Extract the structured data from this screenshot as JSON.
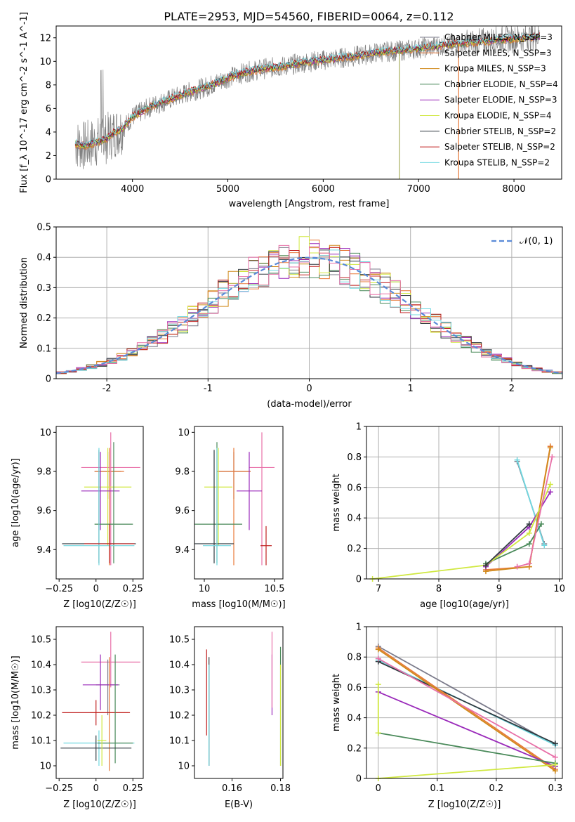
{
  "figure_title": "PLATE=2953, MJD=54560, FIBERID=0064, z=0.112",
  "colors": {
    "Chabrier MILES": "#7a7a8a",
    "Salpeter MILES": "#e87a3a",
    "Kroupa MILES": "#d08a1a",
    "Chabrier ELODIE": "#4a8a5a",
    "Salpeter ELODIE": "#9a2aba",
    "Kroupa ELODIE": "#d0e840",
    "Chabrier STELIB": "#303a40",
    "Salpeter STELIB": "#c02020",
    "Kroupa STELIB": "#70d8e0",
    "pink": "#e870a8",
    "gauss": "#5a8ad8",
    "data": "#808080"
  },
  "chart_data": [
    {
      "id": "spectrum",
      "type": "line",
      "xlabel": "wavelength [Angstrom, rest frame]",
      "ylabel": "Flux [f_λ 10^-17 erg cm^-2 s^-1 A^-1]",
      "xlim": [
        3200,
        8500
      ],
      "ylim": [
        0,
        13
      ],
      "xticks": [
        4000,
        5000,
        6000,
        7000,
        8000
      ],
      "yticks": [
        0,
        2,
        4,
        6,
        8,
        10,
        12
      ],
      "legend_position": "right",
      "legend": [
        "Chabrier MILES, N_SSP=3",
        "Salpeter MILES, N_SSP=3",
        "Kroupa MILES, N_SSP=3",
        "Chabrier ELODIE, N_SSP=4",
        "Salpeter ELODIE, N_SSP=3",
        "Kroupa ELODIE, N_SSP=4",
        "Chabrier STELIB, N_SSP=2",
        "Salpeter STELIB, N_SSP=2",
        "Kroupa STELIB, N_SSP=2"
      ],
      "model_continuum": {
        "x": [
          3400,
          3500,
          3600,
          3700,
          3800,
          3900,
          4000,
          4200,
          4400,
          4600,
          4800,
          5000,
          5200,
          5400,
          5600,
          5800,
          6000,
          6200,
          6400,
          6600,
          6800,
          7000,
          7200,
          7400,
          7600,
          7800,
          8000,
          8250
        ],
        "y": [
          3.0,
          2.8,
          3.1,
          3.3,
          3.9,
          4.3,
          5.3,
          6.2,
          6.8,
          7.4,
          7.9,
          8.6,
          9.1,
          9.4,
          9.6,
          9.9,
          10.1,
          10.3,
          10.5,
          10.8,
          10.9,
          11.1,
          11.3,
          11.5,
          11.6,
          11.8,
          11.9,
          12.1
        ]
      }
    },
    {
      "id": "residuals",
      "type": "histogram",
      "xlabel": "(data-model)/error",
      "ylabel": "Normed distribution",
      "xlim": [
        -2.5,
        2.5
      ],
      "ylim": [
        0,
        0.5
      ],
      "xticks": [
        -2,
        -1,
        0,
        1,
        2
      ],
      "yticks": [
        0.0,
        0.1,
        0.2,
        0.3,
        0.4,
        0.5
      ],
      "grid": true,
      "legend": [
        "𝒩(0, 1)"
      ],
      "legend_position": "top-right",
      "bins": [
        -2.5,
        -2.4,
        -2.3,
        -2.2,
        -2.1,
        -2.0,
        -1.9,
        -1.8,
        -1.7,
        -1.6,
        -1.5,
        -1.4,
        -1.3,
        -1.2,
        -1.1,
        -1.0,
        -0.9,
        -0.8,
        -0.7,
        -0.6,
        -0.5,
        -0.4,
        -0.3,
        -0.2,
        -0.1,
        0.0,
        0.1,
        0.2,
        0.3,
        0.4,
        0.5,
        0.6,
        0.7,
        0.8,
        0.9,
        1.0,
        1.1,
        1.2,
        1.3,
        1.4,
        1.5,
        1.6,
        1.7,
        1.8,
        1.9,
        2.0,
        2.1,
        2.2,
        2.3,
        2.4,
        2.5
      ]
    },
    {
      "id": "age_vs_Z",
      "type": "errorbar",
      "xlabel": "Z [log10(Z/Z☉)]",
      "ylabel": "age  [log10(age/yr)]",
      "xlim": [
        -0.27,
        0.32
      ],
      "ylim": [
        9.25,
        10.03
      ],
      "xticks": [
        -0.25,
        0.0,
        0.25
      ],
      "yticks": [
        9.4,
        9.6,
        9.8,
        10.0
      ],
      "points": [
        {
          "c": "Chabrier MILES",
          "x": 0.08,
          "y": 9.8,
          "xerr": 0.09,
          "yerr": [
            0.14,
            0.1
          ]
        },
        {
          "c": "Salpeter MILES",
          "x": 0.09,
          "y": 9.8,
          "xerr": 0.1,
          "yerr": [
            0.48,
            0.12
          ]
        },
        {
          "c": "pink",
          "x": 0.1,
          "y": 9.82,
          "xerr": 0.2,
          "yerr": [
            0.5,
            0.18
          ]
        },
        {
          "c": "Kroupa ELODIE",
          "x": 0.08,
          "y": 9.72,
          "xerr": 0.16,
          "yerr": [
            0.3,
            0.2
          ]
        },
        {
          "c": "Salpeter ELODIE",
          "x": 0.03,
          "y": 9.7,
          "xerr": 0.13,
          "yerr": [
            0.2,
            0.2
          ]
        },
        {
          "c": "Chabrier ELODIE",
          "x": 0.12,
          "y": 9.53,
          "xerr": 0.13,
          "yerr": [
            0.2,
            0.42
          ]
        },
        {
          "c": "Chabrier STELIB",
          "x": 0.02,
          "y": 9.43,
          "xerr": 0.25,
          "yerr": [
            0.1,
            0.48
          ]
        },
        {
          "c": "Kroupa STELIB",
          "x": 0.02,
          "y": 9.42,
          "xerr": 0.24,
          "yerr": [
            0.1,
            0.5
          ]
        },
        {
          "c": "Salpeter STELIB",
          "x": 0.09,
          "y": 9.43,
          "xerr": 0.17,
          "yerr": [
            0.1,
            0.1
          ]
        }
      ]
    },
    {
      "id": "age_vs_mass",
      "type": "errorbar",
      "xlabel": "mass [log10(M/M☉)]",
      "ylabel": "",
      "xlim": [
        9.93,
        10.56
      ],
      "ylim": [
        9.25,
        10.03
      ],
      "xticks": [
        10.0,
        10.5
      ],
      "yticks": [
        9.4,
        9.6,
        9.8,
        10.0
      ],
      "points": [
        {
          "c": "Chabrier MILES",
          "x": 10.21,
          "y": 9.8,
          "xerr": 0.12,
          "yerr": [
            0.14,
            0.1
          ]
        },
        {
          "c": "Salpeter MILES",
          "x": 10.21,
          "y": 9.8,
          "xerr": 0.12,
          "yerr": [
            0.48,
            0.12
          ]
        },
        {
          "c": "pink",
          "x": 10.41,
          "y": 9.82,
          "xerr": 0.09,
          "yerr": [
            0.5,
            0.18
          ]
        },
        {
          "c": "Kroupa ELODIE",
          "x": 10.1,
          "y": 9.72,
          "xerr": 0.1,
          "yerr": [
            0.3,
            0.2
          ]
        },
        {
          "c": "Salpeter ELODIE",
          "x": 10.32,
          "y": 9.7,
          "xerr": 0.09,
          "yerr": [
            0.2,
            0.2
          ]
        },
        {
          "c": "Chabrier ELODIE",
          "x": 10.09,
          "y": 9.53,
          "xerr": 0.18,
          "yerr": [
            0.2,
            0.42
          ]
        },
        {
          "c": "Chabrier STELIB",
          "x": 10.07,
          "y": 9.43,
          "xerr": 0.14,
          "yerr": [
            0.1,
            0.48
          ]
        },
        {
          "c": "Kroupa STELIB",
          "x": 10.09,
          "y": 9.42,
          "xerr": 0.1,
          "yerr": [
            0.1,
            0.5
          ]
        },
        {
          "c": "Salpeter STELIB",
          "x": 10.44,
          "y": 9.42,
          "xerr": 0.04,
          "yerr": [
            0.1,
            0.1
          ]
        }
      ]
    },
    {
      "id": "weight_vs_age",
      "type": "line",
      "xlabel": "age  [log10(age/yr)]",
      "ylabel": "mass weight",
      "xlim": [
        6.8,
        10.05
      ],
      "ylim": [
        0,
        1
      ],
      "xticks": [
        7,
        8,
        9,
        10
      ],
      "yticks": [
        0.0,
        0.2,
        0.4,
        0.6,
        0.8,
        1.0
      ],
      "grid": true,
      "series": [
        {
          "c": "Chabrier MILES",
          "x": [
            9.3,
            9.75
          ],
          "y": [
            0.77,
            0.23
          ]
        },
        {
          "c": "Kroupa STELIB",
          "x": [
            9.3,
            9.75
          ],
          "y": [
            0.78,
            0.22
          ]
        },
        {
          "c": "Salpeter MILES",
          "x": [
            8.78,
            9.5,
            9.85
          ],
          "y": [
            0.06,
            0.08,
            0.87
          ]
        },
        {
          "c": "Kroupa MILES",
          "x": [
            8.78,
            9.5,
            9.85
          ],
          "y": [
            0.05,
            0.08,
            0.86
          ]
        },
        {
          "c": "Chabrier ELODIE",
          "x": [
            8.78,
            9.5,
            9.7
          ],
          "y": [
            0.1,
            0.23,
            0.36
          ]
        },
        {
          "c": "Salpeter ELODIE",
          "x": [
            8.78,
            9.5,
            9.85
          ],
          "y": [
            0.08,
            0.34,
            0.57
          ]
        },
        {
          "c": "Kroupa ELODIE",
          "x": [
            6.9,
            8.78,
            9.5,
            9.85
          ],
          "y": [
            0.0,
            0.09,
            0.3,
            0.62
          ]
        },
        {
          "c": "Chabrier STELIB",
          "x": [
            8.78,
            9.5
          ],
          "y": [
            0.09,
            0.36
          ]
        },
        {
          "c": "pink",
          "x": [
            9.3,
            9.5,
            9.88
          ],
          "y": [
            0.08,
            0.1,
            0.8
          ]
        }
      ]
    },
    {
      "id": "mass_vs_Z",
      "type": "errorbar",
      "xlabel": "Z [log10(Z/Z☉)]",
      "ylabel": "mass [log10(M/M☉)]",
      "xlim": [
        -0.27,
        0.32
      ],
      "ylim": [
        9.95,
        10.55
      ],
      "xticks": [
        -0.25,
        0.0,
        0.25
      ],
      "yticks": [
        10.0,
        10.1,
        10.2,
        10.3,
        10.4,
        10.5
      ],
      "points": [
        {
          "c": "pink",
          "x": 0.1,
          "y": 10.41,
          "xerr": 0.2,
          "yerr": [
            0.1,
            0.12
          ]
        },
        {
          "c": "Chabrier MILES",
          "x": 0.08,
          "y": 10.32,
          "xerr": 0.08,
          "yerr": [
            0.12,
            0.1
          ]
        },
        {
          "c": "Salpeter ELODIE",
          "x": 0.03,
          "y": 10.32,
          "xerr": 0.12,
          "yerr": [
            0.1,
            0.12
          ]
        },
        {
          "c": "Salpeter MILES",
          "x": 0.09,
          "y": 10.21,
          "xerr": 0.13,
          "yerr": [
            0.23,
            0.22
          ]
        },
        {
          "c": "Salpeter STELIB",
          "x": 0.0,
          "y": 10.21,
          "xerr": 0.23,
          "yerr": [
            0.05,
            0.05
          ]
        },
        {
          "c": "Kroupa STELIB",
          "x": 0.02,
          "y": 10.09,
          "xerr": 0.24,
          "yerr": [
            0.09,
            0.05
          ]
        },
        {
          "c": "Chabrier ELODIE",
          "x": 0.13,
          "y": 10.09,
          "xerr": 0.12,
          "yerr": [
            0.08,
            0.35
          ]
        },
        {
          "c": "Chabrier STELIB",
          "x": 0.0,
          "y": 10.07,
          "xerr": 0.24,
          "yerr": [
            0.05,
            0.05
          ]
        },
        {
          "c": "Kroupa ELODIE",
          "x": 0.04,
          "y": 10.1,
          "xerr": 0.03,
          "yerr": [
            0.1,
            0.1
          ]
        }
      ]
    },
    {
      "id": "mass_vs_ebv",
      "type": "errorbar",
      "xlabel": "E(B-V)",
      "ylabel": "",
      "xlim": [
        0.1445,
        0.181
      ],
      "ylim": [
        9.95,
        10.55
      ],
      "xticks": [
        0.16,
        0.18
      ],
      "yticks": [
        10.0,
        10.1,
        10.2,
        10.3,
        10.4,
        10.5
      ],
      "points": [
        {
          "c": "Salpeter STELIB",
          "x": 0.1495,
          "y": 10.29,
          "xerr": 0,
          "yerr": [
            0.17,
            0.17
          ]
        },
        {
          "c": "Chabrier STELIB",
          "x": 0.1505,
          "y": 10.2,
          "xerr": 0,
          "yerr": [
            0.2,
            0.23
          ]
        },
        {
          "c": "Kroupa STELIB",
          "x": 0.1505,
          "y": 10.2,
          "xerr": 0,
          "yerr": [
            0.2,
            0.2
          ]
        },
        {
          "c": "Salpeter ELODIE",
          "x": 0.1765,
          "y": 10.3,
          "xerr": 0,
          "yerr": [
            0.1,
            0.14
          ]
        },
        {
          "c": "pink",
          "x": 0.1765,
          "y": 10.35,
          "xerr": 0,
          "yerr": [
            0.12,
            0.18
          ]
        },
        {
          "c": "Chabrier ELODIE",
          "x": 0.18,
          "y": 10.3,
          "xerr": 0,
          "yerr": [
            0.3,
            0.17
          ]
        },
        {
          "c": "Kroupa ELODIE",
          "x": 0.18,
          "y": 10.2,
          "xerr": 0,
          "yerr": [
            0.2,
            0.2
          ]
        }
      ]
    },
    {
      "id": "weight_vs_Z",
      "type": "line",
      "xlabel": "Z [log10(Z/Z☉)]",
      "ylabel": "mass weight",
      "xlim": [
        -0.02,
        0.312
      ],
      "ylim": [
        0,
        1
      ],
      "xticks": [
        0.0,
        0.1,
        0.2,
        0.3
      ],
      "yticks": [
        0.0,
        0.2,
        0.4,
        0.6,
        0.8,
        1.0
      ],
      "grid": true,
      "series": [
        {
          "c": "Chabrier MILES",
          "x": [
            0.0,
            0.3
          ],
          "y": [
            0.87,
            0.22
          ]
        },
        {
          "c": "Kroupa STELIB",
          "x": [
            0.0,
            0.3
          ],
          "y": [
            0.78,
            0.22
          ]
        },
        {
          "c": "Chabrier STELIB",
          "x": [
            0.0,
            0.3
          ],
          "y": [
            0.77,
            0.23
          ]
        },
        {
          "c": "Salpeter MILES",
          "x": [
            0.0,
            0.3
          ],
          "y": [
            0.86,
            0.06
          ]
        },
        {
          "c": "Kroupa MILES",
          "x": [
            0.0,
            0.3
          ],
          "y": [
            0.85,
            0.05
          ]
        },
        {
          "c": "pink",
          "x": [
            0.0,
            0.3
          ],
          "y": [
            0.79,
            0.14
          ]
        },
        {
          "c": "Salpeter ELODIE",
          "x": [
            0.0,
            0.3
          ],
          "y": [
            0.57,
            0.08
          ]
        },
        {
          "c": "Chabrier ELODIE",
          "x": [
            0.0,
            0.3
          ],
          "y": [
            0.3,
            0.1
          ]
        },
        {
          "c": "Kroupa ELODIE",
          "x": [
            0.0,
            0.3
          ],
          "y": [
            0.0,
            0.09
          ]
        },
        {
          "c": "Kroupa ELODIE",
          "x": [
            0.0,
            0.0
          ],
          "y": [
            0.3,
            0.62
          ]
        }
      ]
    }
  ]
}
